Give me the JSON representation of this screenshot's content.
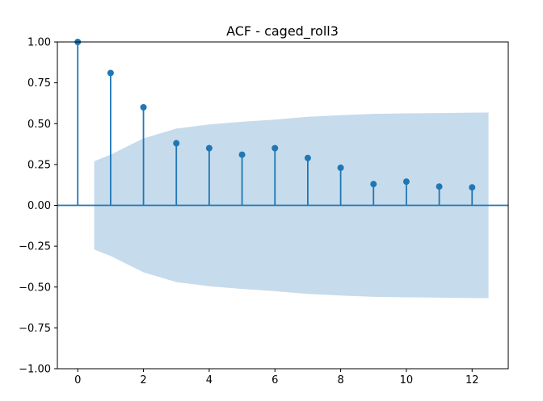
{
  "chart_data": {
    "type": "stem",
    "title": "ACF - caged_roll3",
    "xlabel": "",
    "ylabel": "",
    "xlim": [
      -0.62,
      13.1
    ],
    "ylim": [
      -1.0,
      1.0
    ],
    "x_ticks": [
      0,
      2,
      4,
      6,
      8,
      10,
      12
    ],
    "y_ticks": [
      -1.0,
      -0.75,
      -0.5,
      -0.25,
      0.0,
      0.25,
      0.5,
      0.75,
      1.0
    ],
    "x_tick_labels": [
      "0",
      "2",
      "4",
      "6",
      "8",
      "10",
      "12"
    ],
    "y_tick_labels": [
      "−1.00",
      "−0.75",
      "−0.50",
      "−0.25",
      "0.00",
      "0.25",
      "0.50",
      "0.75",
      "1.00"
    ],
    "grid": false,
    "lags": [
      0,
      1,
      2,
      3,
      4,
      5,
      6,
      7,
      8,
      9,
      10,
      11,
      12
    ],
    "acf": [
      1.0,
      0.81,
      0.6,
      0.38,
      0.35,
      0.31,
      0.35,
      0.29,
      0.23,
      0.13,
      0.145,
      0.115,
      0.11
    ],
    "confidence_band": {
      "x": [
        0.5,
        1,
        2,
        3,
        4,
        5,
        6,
        7,
        8,
        9,
        10,
        11,
        12,
        12.5
      ],
      "upper": [
        0.27,
        0.31,
        0.41,
        0.47,
        0.495,
        0.512,
        0.525,
        0.542,
        0.552,
        0.56,
        0.563,
        0.565,
        0.567,
        0.568
      ]
    },
    "colors": {
      "stem": "#1f77b4",
      "marker": "#1f77b4",
      "zero_line": "#1f77b4",
      "band": "#c6dbec"
    }
  }
}
